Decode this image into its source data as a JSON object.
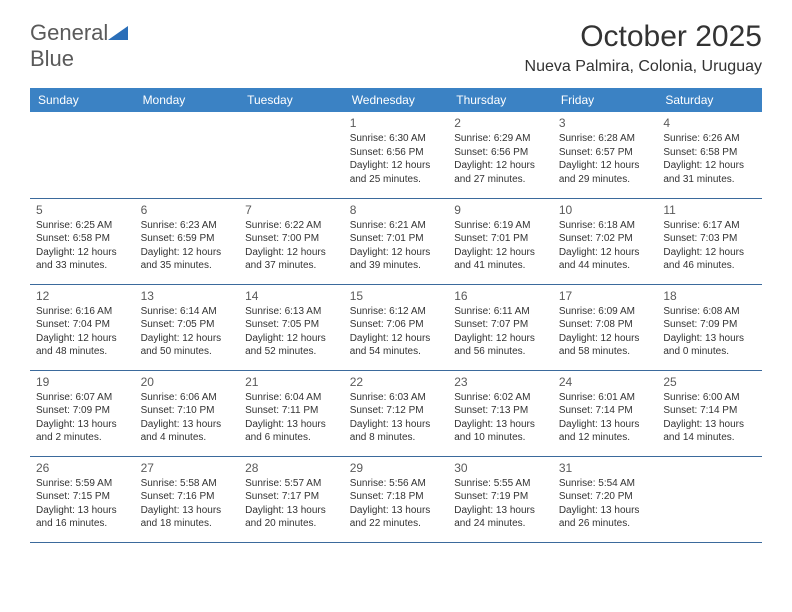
{
  "logo": {
    "word1": "General",
    "word2": "Blue"
  },
  "header": {
    "title": "October 2025",
    "location": "Nueva Palmira, Colonia, Uruguay"
  },
  "colors": {
    "header_bg": "#3b82c4",
    "header_text": "#ffffff",
    "row_border": "#3b6a9c",
    "day_number": "#5a5a5a",
    "body_text": "#333333",
    "logo_gray": "#5a5a5a",
    "logo_blue": "#2a6eb8"
  },
  "weekdays": [
    "Sunday",
    "Monday",
    "Tuesday",
    "Wednesday",
    "Thursday",
    "Friday",
    "Saturday"
  ],
  "weeks": [
    [
      null,
      null,
      null,
      {
        "day": "1",
        "sunrise": "Sunrise: 6:30 AM",
        "sunset": "Sunset: 6:56 PM",
        "daylight1": "Daylight: 12 hours",
        "daylight2": "and 25 minutes."
      },
      {
        "day": "2",
        "sunrise": "Sunrise: 6:29 AM",
        "sunset": "Sunset: 6:56 PM",
        "daylight1": "Daylight: 12 hours",
        "daylight2": "and 27 minutes."
      },
      {
        "day": "3",
        "sunrise": "Sunrise: 6:28 AM",
        "sunset": "Sunset: 6:57 PM",
        "daylight1": "Daylight: 12 hours",
        "daylight2": "and 29 minutes."
      },
      {
        "day": "4",
        "sunrise": "Sunrise: 6:26 AM",
        "sunset": "Sunset: 6:58 PM",
        "daylight1": "Daylight: 12 hours",
        "daylight2": "and 31 minutes."
      }
    ],
    [
      {
        "day": "5",
        "sunrise": "Sunrise: 6:25 AM",
        "sunset": "Sunset: 6:58 PM",
        "daylight1": "Daylight: 12 hours",
        "daylight2": "and 33 minutes."
      },
      {
        "day": "6",
        "sunrise": "Sunrise: 6:23 AM",
        "sunset": "Sunset: 6:59 PM",
        "daylight1": "Daylight: 12 hours",
        "daylight2": "and 35 minutes."
      },
      {
        "day": "7",
        "sunrise": "Sunrise: 6:22 AM",
        "sunset": "Sunset: 7:00 PM",
        "daylight1": "Daylight: 12 hours",
        "daylight2": "and 37 minutes."
      },
      {
        "day": "8",
        "sunrise": "Sunrise: 6:21 AM",
        "sunset": "Sunset: 7:01 PM",
        "daylight1": "Daylight: 12 hours",
        "daylight2": "and 39 minutes."
      },
      {
        "day": "9",
        "sunrise": "Sunrise: 6:19 AM",
        "sunset": "Sunset: 7:01 PM",
        "daylight1": "Daylight: 12 hours",
        "daylight2": "and 41 minutes."
      },
      {
        "day": "10",
        "sunrise": "Sunrise: 6:18 AM",
        "sunset": "Sunset: 7:02 PM",
        "daylight1": "Daylight: 12 hours",
        "daylight2": "and 44 minutes."
      },
      {
        "day": "11",
        "sunrise": "Sunrise: 6:17 AM",
        "sunset": "Sunset: 7:03 PM",
        "daylight1": "Daylight: 12 hours",
        "daylight2": "and 46 minutes."
      }
    ],
    [
      {
        "day": "12",
        "sunrise": "Sunrise: 6:16 AM",
        "sunset": "Sunset: 7:04 PM",
        "daylight1": "Daylight: 12 hours",
        "daylight2": "and 48 minutes."
      },
      {
        "day": "13",
        "sunrise": "Sunrise: 6:14 AM",
        "sunset": "Sunset: 7:05 PM",
        "daylight1": "Daylight: 12 hours",
        "daylight2": "and 50 minutes."
      },
      {
        "day": "14",
        "sunrise": "Sunrise: 6:13 AM",
        "sunset": "Sunset: 7:05 PM",
        "daylight1": "Daylight: 12 hours",
        "daylight2": "and 52 minutes."
      },
      {
        "day": "15",
        "sunrise": "Sunrise: 6:12 AM",
        "sunset": "Sunset: 7:06 PM",
        "daylight1": "Daylight: 12 hours",
        "daylight2": "and 54 minutes."
      },
      {
        "day": "16",
        "sunrise": "Sunrise: 6:11 AM",
        "sunset": "Sunset: 7:07 PM",
        "daylight1": "Daylight: 12 hours",
        "daylight2": "and 56 minutes."
      },
      {
        "day": "17",
        "sunrise": "Sunrise: 6:09 AM",
        "sunset": "Sunset: 7:08 PM",
        "daylight1": "Daylight: 12 hours",
        "daylight2": "and 58 minutes."
      },
      {
        "day": "18",
        "sunrise": "Sunrise: 6:08 AM",
        "sunset": "Sunset: 7:09 PM",
        "daylight1": "Daylight: 13 hours",
        "daylight2": "and 0 minutes."
      }
    ],
    [
      {
        "day": "19",
        "sunrise": "Sunrise: 6:07 AM",
        "sunset": "Sunset: 7:09 PM",
        "daylight1": "Daylight: 13 hours",
        "daylight2": "and 2 minutes."
      },
      {
        "day": "20",
        "sunrise": "Sunrise: 6:06 AM",
        "sunset": "Sunset: 7:10 PM",
        "daylight1": "Daylight: 13 hours",
        "daylight2": "and 4 minutes."
      },
      {
        "day": "21",
        "sunrise": "Sunrise: 6:04 AM",
        "sunset": "Sunset: 7:11 PM",
        "daylight1": "Daylight: 13 hours",
        "daylight2": "and 6 minutes."
      },
      {
        "day": "22",
        "sunrise": "Sunrise: 6:03 AM",
        "sunset": "Sunset: 7:12 PM",
        "daylight1": "Daylight: 13 hours",
        "daylight2": "and 8 minutes."
      },
      {
        "day": "23",
        "sunrise": "Sunrise: 6:02 AM",
        "sunset": "Sunset: 7:13 PM",
        "daylight1": "Daylight: 13 hours",
        "daylight2": "and 10 minutes."
      },
      {
        "day": "24",
        "sunrise": "Sunrise: 6:01 AM",
        "sunset": "Sunset: 7:14 PM",
        "daylight1": "Daylight: 13 hours",
        "daylight2": "and 12 minutes."
      },
      {
        "day": "25",
        "sunrise": "Sunrise: 6:00 AM",
        "sunset": "Sunset: 7:14 PM",
        "daylight1": "Daylight: 13 hours",
        "daylight2": "and 14 minutes."
      }
    ],
    [
      {
        "day": "26",
        "sunrise": "Sunrise: 5:59 AM",
        "sunset": "Sunset: 7:15 PM",
        "daylight1": "Daylight: 13 hours",
        "daylight2": "and 16 minutes."
      },
      {
        "day": "27",
        "sunrise": "Sunrise: 5:58 AM",
        "sunset": "Sunset: 7:16 PM",
        "daylight1": "Daylight: 13 hours",
        "daylight2": "and 18 minutes."
      },
      {
        "day": "28",
        "sunrise": "Sunrise: 5:57 AM",
        "sunset": "Sunset: 7:17 PM",
        "daylight1": "Daylight: 13 hours",
        "daylight2": "and 20 minutes."
      },
      {
        "day": "29",
        "sunrise": "Sunrise: 5:56 AM",
        "sunset": "Sunset: 7:18 PM",
        "daylight1": "Daylight: 13 hours",
        "daylight2": "and 22 minutes."
      },
      {
        "day": "30",
        "sunrise": "Sunrise: 5:55 AM",
        "sunset": "Sunset: 7:19 PM",
        "daylight1": "Daylight: 13 hours",
        "daylight2": "and 24 minutes."
      },
      {
        "day": "31",
        "sunrise": "Sunrise: 5:54 AM",
        "sunset": "Sunset: 7:20 PM",
        "daylight1": "Daylight: 13 hours",
        "daylight2": "and 26 minutes."
      },
      null
    ]
  ]
}
